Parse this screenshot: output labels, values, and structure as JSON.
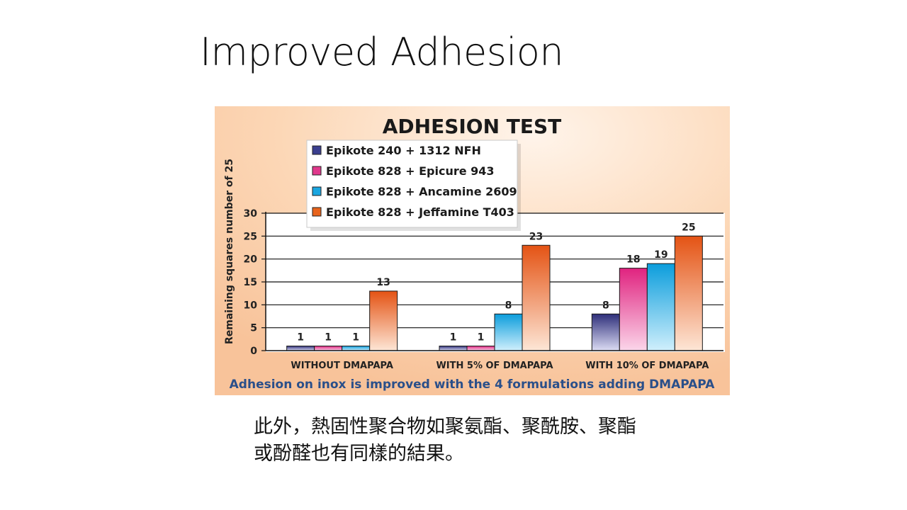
{
  "slide": {
    "title": "Improved Adhesion",
    "caption_line1": "此外，熱固性聚合物如聚氨酯、聚酰胺、聚酯",
    "caption_line2": "或酚醛也有同樣的結果。"
  },
  "chart_data": {
    "type": "bar",
    "title": "ADHESION TEST",
    "ylabel": "Remaining squares number of 25",
    "xlabel": "",
    "ylim": [
      0,
      30
    ],
    "yticks": [
      0,
      5,
      10,
      15,
      20,
      25,
      30
    ],
    "grid": true,
    "legend_position": "top-left",
    "categories": [
      "WITHOUT DMAPAPA",
      "WITH 5% OF DMAPAPA",
      "WITH 10% OF DMAPAPA"
    ],
    "series": [
      {
        "name": "Epikote 240 + 1312 NFH",
        "color": "#3b3f8f",
        "values": [
          1,
          1,
          8
        ]
      },
      {
        "name": "Epikote 828 + Epicure 943",
        "color": "#e0388c",
        "values": [
          1,
          1,
          18
        ]
      },
      {
        "name": "Epikote 828 + Ancamine 2609",
        "color": "#1aa6e0",
        "values": [
          1,
          8,
          19
        ]
      },
      {
        "name": "Epikote 828 + Jeffamine T403",
        "color": "#e8641c",
        "values": [
          13,
          23,
          25
        ]
      }
    ],
    "data_labels": [
      [
        "1",
        "1",
        "8"
      ],
      [
        "1",
        "1",
        "18"
      ],
      [
        "1",
        "8",
        "19"
      ],
      [
        "13",
        "23",
        "25"
      ]
    ],
    "footnote": "Adhesion on inox is improved with the 4 formulations adding DMAPAPA",
    "colors": {
      "background_light": "#fde4cc",
      "background_dark": "#f7b98a",
      "footnote": "#2a4f8a"
    }
  }
}
